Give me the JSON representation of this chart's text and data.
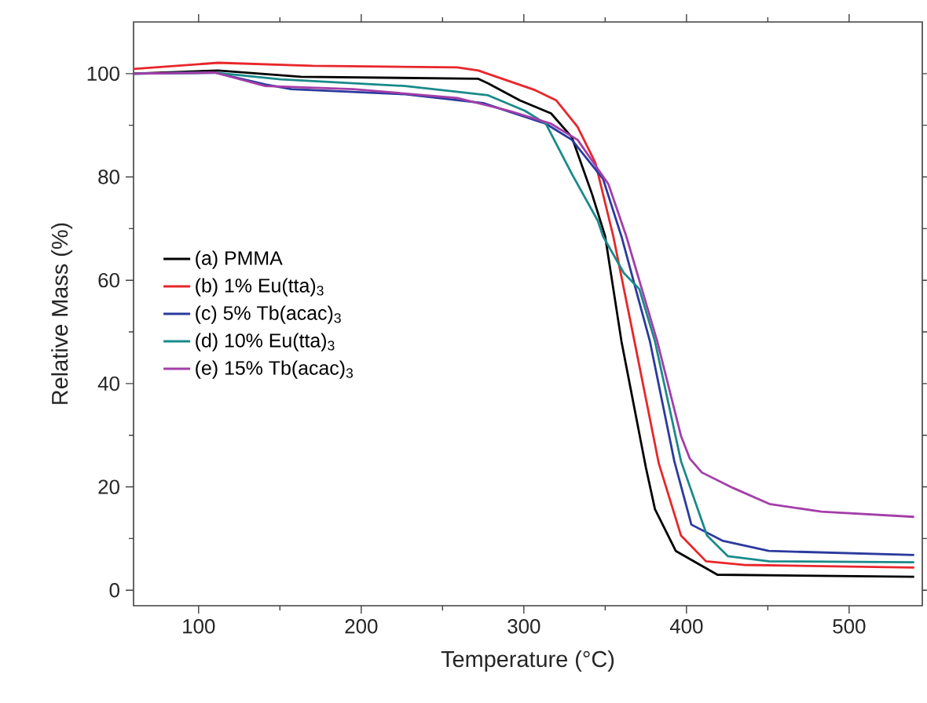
{
  "chart_data": {
    "type": "line",
    "xlabel": "Temperature (°C)",
    "ylabel": "Relative Mass (%)",
    "xlim": [
      60,
      545
    ],
    "ylim": [
      -3,
      110
    ],
    "xticks": [
      100,
      200,
      300,
      400,
      500
    ],
    "yticks": [
      0,
      20,
      40,
      60,
      80,
      100
    ],
    "grid": false,
    "legend": "left",
    "marker": "none",
    "line_style": "solid",
    "series": [
      {
        "name": "(a) PMMA",
        "color": "#000000",
        "x": [
          60,
          112,
          163,
          272,
          278,
          297.6,
          316.7,
          329.5,
          342,
          350,
          360,
          375,
          380.6,
          393.4,
          419,
          540
        ],
        "values": [
          100,
          100.6,
          99.4,
          99.0,
          98.1,
          94.8,
          92.3,
          87.7,
          76.6,
          68.5,
          48.2,
          23.8,
          15.7,
          7.6,
          3.0,
          2.6
        ]
      },
      {
        "name": "(b) 1% Eu(tta)$_{3}$",
        "color": "#e8262a",
        "x": [
          60,
          112,
          170,
          259,
          272,
          307,
          320,
          333,
          344,
          355,
          368,
          383,
          396.6,
          412,
          435,
          540
        ],
        "values": [
          100.9,
          102.1,
          101.5,
          101.2,
          100.6,
          96.8,
          94.8,
          89.7,
          82.7,
          68.5,
          48.2,
          24.5,
          10.6,
          5.6,
          4.9,
          4.4
        ]
      },
      {
        "name": "(c) 5% Tb(acac)$_{3}$",
        "color": "#2b3a9e",
        "x": [
          60,
          110,
          141,
          157,
          227,
          275,
          313.5,
          329.5,
          348.7,
          360,
          377.5,
          392.5,
          403,
          422,
          450.6,
          540
        ],
        "values": [
          100,
          100.2,
          97.9,
          97.0,
          96.0,
          94.3,
          90.3,
          87.2,
          79.6,
          68.5,
          48.2,
          25,
          12.7,
          9.6,
          7.6,
          6.8
        ]
      },
      {
        "name": "(d) 10% Eu(tta)$_{3}$",
        "color": "#1a8a8a",
        "x": [
          60,
          110,
          150.5,
          227,
          278,
          300.7,
          313.5,
          329.5,
          345.5,
          348.7,
          361.5,
          371,
          380.6,
          396.6,
          412.6,
          425.4,
          450.6,
          540
        ],
        "values": [
          100,
          100.2,
          98.9,
          97.6,
          95.8,
          92.8,
          90.3,
          80.6,
          71.5,
          68.5,
          61.4,
          58.3,
          48.2,
          25,
          10.6,
          6.6,
          5.6,
          5.4
        ]
      },
      {
        "name": "(e) 15% Tb(acac)$_{3}$",
        "color": "#a33ea8",
        "x": [
          60,
          110,
          141,
          195,
          259,
          291,
          316.7,
          333,
          352,
          363,
          382,
          396.6,
          402,
          409.4,
          428.6,
          451,
          483,
          540
        ],
        "values": [
          100,
          100.2,
          97.6,
          97.0,
          95.3,
          92.8,
          90.3,
          87.2,
          78.6,
          68.5,
          48.2,
          29.9,
          25.5,
          22.8,
          19.8,
          16.7,
          15.2,
          14.2
        ]
      }
    ]
  }
}
